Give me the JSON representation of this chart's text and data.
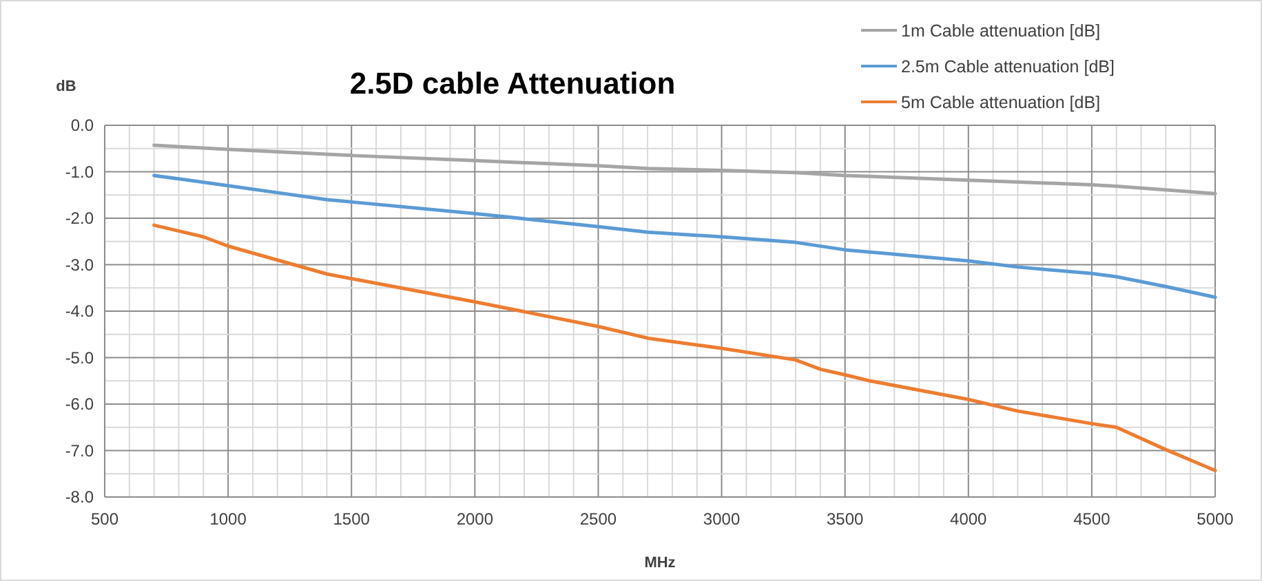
{
  "chart_data": {
    "type": "line",
    "title": "2.5D cable Attenuation",
    "xlabel": "MHz",
    "ylabel": "dB",
    "xlim": [
      500,
      5000
    ],
    "xticks": [
      500,
      1000,
      1500,
      2000,
      2500,
      3000,
      3500,
      4000,
      4500,
      5000
    ],
    "ylim": [
      -8,
      0
    ],
    "yticks": [
      {
        "value": 0,
        "label": "0.0"
      },
      {
        "value": -1,
        "label": "-1.0"
      },
      {
        "value": -2,
        "label": "-2.0"
      },
      {
        "value": -3,
        "label": "-3.0"
      },
      {
        "value": -4,
        "label": "-4.0"
      },
      {
        "value": -5,
        "label": "-5.0"
      },
      {
        "value": -6,
        "label": "-6.0"
      },
      {
        "value": -7,
        "label": "-7.0"
      },
      {
        "value": -8,
        "label": "-8.0"
      }
    ],
    "grid": true,
    "legend": "top right",
    "marker": "none",
    "line_style": "solid",
    "series": [
      {
        "name": "1m Cable attenuation [dB]",
        "color": "#a5a5a5",
        "x": [
          700,
          1000,
          1500,
          2000,
          2500,
          2700,
          3000,
          3300,
          3500,
          4000,
          4500,
          4600,
          5000
        ],
        "values": [
          -0.43,
          -0.52,
          -0.65,
          -0.76,
          -0.87,
          -0.93,
          -0.97,
          -1.02,
          -1.08,
          -1.18,
          -1.28,
          -1.31,
          -1.47
        ]
      },
      {
        "name": "2.5m Cable attenuation [dB]",
        "color": "#5b9bd5",
        "x": [
          700,
          1000,
          1200,
          1400,
          1500,
          2000,
          2500,
          2700,
          3000,
          3300,
          3500,
          4000,
          4200,
          4500,
          4600,
          4800,
          5000
        ],
        "values": [
          -1.08,
          -1.3,
          -1.45,
          -1.6,
          -1.65,
          -1.9,
          -2.18,
          -2.3,
          -2.4,
          -2.52,
          -2.68,
          -2.92,
          -3.05,
          -3.19,
          -3.26,
          -3.47,
          -3.7
        ]
      },
      {
        "name": "5m Cable attenuation [dB]",
        "color": "#ed7d31",
        "x": [
          700,
          900,
          1000,
          1200,
          1400,
          1500,
          2000,
          2500,
          2700,
          3000,
          3300,
          3400,
          3500,
          3600,
          4000,
          4200,
          4500,
          4600,
          4800,
          5000
        ],
        "values": [
          -2.15,
          -2.4,
          -2.6,
          -2.9,
          -3.2,
          -3.3,
          -3.8,
          -4.33,
          -4.58,
          -4.8,
          -5.05,
          -5.25,
          -5.37,
          -5.5,
          -5.9,
          -6.15,
          -6.42,
          -6.5,
          -6.98,
          -7.43
        ]
      }
    ]
  }
}
